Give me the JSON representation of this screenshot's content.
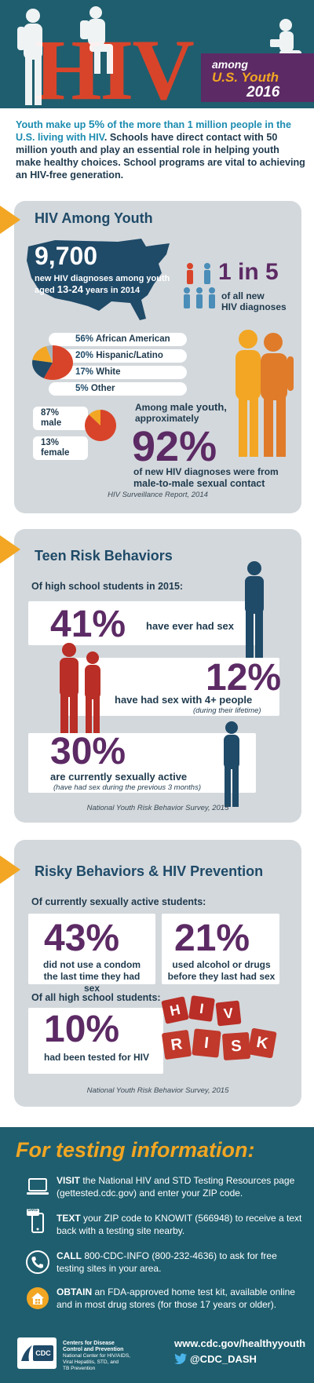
{
  "header": {
    "hiv": "HIV",
    "among": "among",
    "us_youth": "U.S. Youth",
    "year": "2016"
  },
  "intro": {
    "p1": "Youth make up ",
    "p1_hl1": "5%",
    "p2": " of the more than ",
    "p2_hl2": "1 million people in the U.S. living with HIV",
    "p3": ". Schools have direct contact with 50 million youth and play an essential role in helping youth make healthy choices. School programs are vital to achieving an HIV-free generation."
  },
  "section1": {
    "title": "HIV Among Youth",
    "big_number": "9,700",
    "big_sub_line1": "new HIV diagnoses among youth",
    "big_sub_line2_pre": "aged ",
    "big_sub_line2_hl": "13-24",
    "big_sub_line2_post": " years in 2014",
    "one_in_five": "1 in 5",
    "of_all_line1": "of all new",
    "of_all_line2": "HIV diagnoses",
    "race": [
      {
        "pct": "56%",
        "label": "African American"
      },
      {
        "pct": "20%",
        "label": "Hispanic/Latino"
      },
      {
        "pct": "17%",
        "label": "White"
      },
      {
        "pct": "5%",
        "label": "Other"
      }
    ],
    "race_values": [
      56,
      20,
      17,
      5
    ],
    "race_colors": [
      "#d8442a",
      "#1f4a68",
      "#f2a623",
      "#a8b4bc"
    ],
    "male_pct": "87%",
    "male_label": "male",
    "female_pct": "13%",
    "female_label": "female",
    "sex_values": [
      87,
      13
    ],
    "sex_colors": [
      "#d8442a",
      "#f2a623"
    ],
    "among_male_line1_pre": "Among ",
    "among_male_line1_hl": "male youth,",
    "among_male_line2": "approximately",
    "pct92": "92%",
    "new_diag_line1": "of new HIV diagnoses were from",
    "new_diag_line2": "male-to-male sexual contact",
    "source": "HIV Surveillance Report, 2014"
  },
  "section2": {
    "title": "Teen Risk Behaviors",
    "lead": "Of high school students in 2015:",
    "pct41": "41%",
    "desc41": "have ever had sex",
    "pct12": "12%",
    "desc12": "have had sex with 4+ people",
    "note12": "(during their lifetime)",
    "pct30": "30%",
    "desc30": "are currently sexually active",
    "note30": "(have had sex during the previous 3 months)",
    "source": "National Youth Risk Behavior Survey, 2015"
  },
  "section3": {
    "title": "Risky Behaviors & HIV Prevention",
    "lead1": "Of currently sexually active students:",
    "pct43": "43%",
    "desc43_line1": "did not use a condom",
    "desc43_line2": "the last time they had sex",
    "pct21": "21%",
    "desc21_line1": "used alcohol or drugs",
    "desc21_line2": "before they last had sex",
    "lead2": "Of all high school students:",
    "pct10": "10%",
    "desc10": "had been tested for HIV",
    "dice_top": [
      "H",
      "I",
      "V"
    ],
    "dice_bottom": [
      "R",
      "I",
      "S",
      "K"
    ],
    "source": "National Youth Risk Behavior Survey, 2015"
  },
  "footer": {
    "title": "For testing information:",
    "items": [
      {
        "verb": "VISIT",
        "text": " the National HIV and STD Testing Resources page (gettested.cdc.gov) and enter your ZIP code.",
        "icon": "laptop-icon"
      },
      {
        "verb": "TEXT",
        "text": " your ZIP code to KNOWIT (566948) to receive a text back with a testing site nearby.",
        "icon": "phone-sms-icon",
        "badge": "SMS"
      },
      {
        "verb": "CALL",
        "text": " 800-CDC-INFO (800-232-4636) to ask for free testing sites in your area.",
        "icon": "telephone-icon"
      },
      {
        "verb": "OBTAIN",
        "text": " an FDA-approved home test kit, available online and in most drug stores (for those 17 years or older).",
        "icon": "home-icon"
      }
    ],
    "cdc_logo": "CDC",
    "cdc_line1": "Centers for Disease",
    "cdc_line2": "Control and Prevention",
    "cdc_line3": "National Center for HIV/AIDS,",
    "cdc_line4": "Viral Hepatitis, STD, and",
    "cdc_line5": "TB Prevention",
    "url": "www.cdc.gov/healthyyouth",
    "twitter": "@CDC_DASH"
  }
}
